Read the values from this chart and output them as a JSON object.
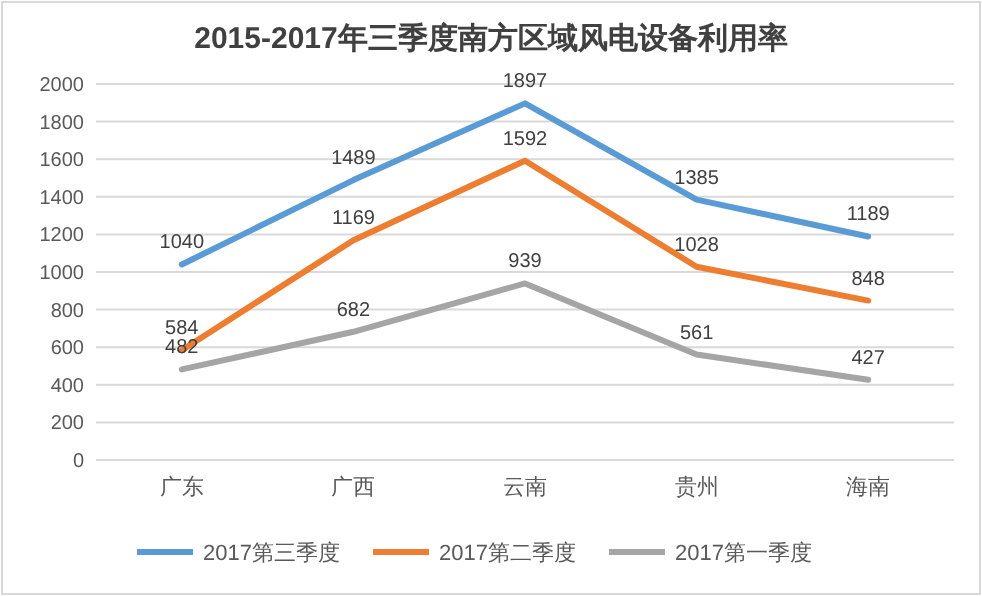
{
  "chart_data": {
    "type": "line",
    "title": "2015-2017年三季度南方区域风电设备利用率",
    "categories": [
      "广东",
      "广西",
      "云南",
      "贵州",
      "海南"
    ],
    "series": [
      {
        "name": "2017第三季度",
        "color": "#5b9bd5",
        "values": [
          1040,
          1489,
          1897,
          1385,
          1189
        ]
      },
      {
        "name": "2017第二季度",
        "color": "#ed7d31",
        "values": [
          584,
          1169,
          1592,
          1028,
          848
        ]
      },
      {
        "name": "2017第一季度",
        "color": "#a5a5a5",
        "values": [
          482,
          682,
          939,
          561,
          427
        ]
      }
    ],
    "ylim": [
      0,
      2000
    ],
    "yticks": [
      0,
      200,
      400,
      600,
      800,
      1000,
      1200,
      1400,
      1600,
      1800,
      2000
    ],
    "grid": "y",
    "legend": "bottom",
    "data_labels": true
  }
}
